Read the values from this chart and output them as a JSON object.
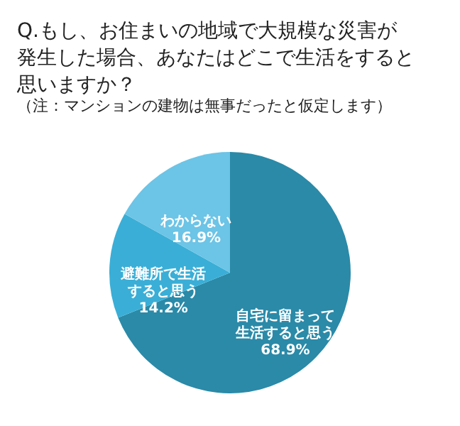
{
  "chart_data": {
    "type": "pie",
    "title": "Q.もし、お住まいの地域で大規模な災害が発生した場合、あなたはどこで生活をすると思いますか？",
    "subtitle": "（注：マンションの建物は無事だったと仮定します）",
    "categories": [
      "自宅に留まって生活すると思う",
      "避難所で生活すると思う",
      "わからない"
    ],
    "values": [
      68.9,
      14.2,
      16.9
    ],
    "value_labels": [
      "68.9%",
      "14.2%",
      "16.9%"
    ],
    "colors": [
      "#2a8aa8",
      "#3aaed6",
      "#6cc4e6"
    ]
  }
}
